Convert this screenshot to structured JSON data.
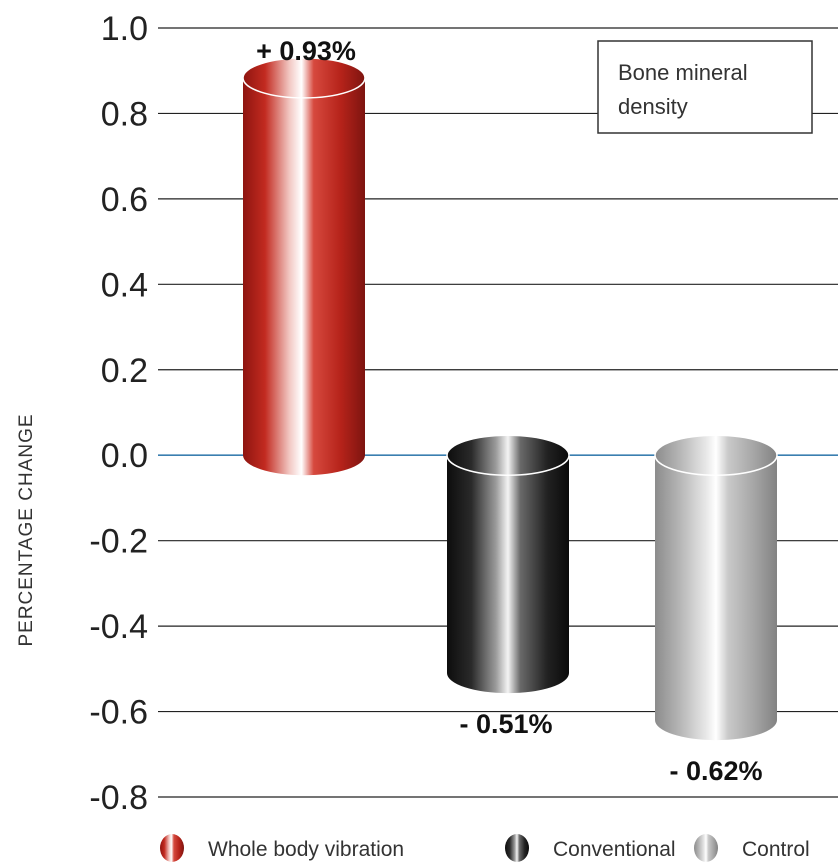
{
  "chart_data": {
    "type": "bar",
    "categories": [
      "Whole body vibration",
      "Conventional",
      "Control"
    ],
    "values": [
      0.93,
      -0.51,
      -0.62
    ],
    "data_labels": [
      "+ 0.93%",
      "- 0.51%",
      "- 0.62%"
    ],
    "ylabel": "PERCENTAGE CHANGE",
    "ylim": [
      -0.8,
      1.0
    ],
    "yticks": [
      "1.0",
      "0.8",
      "0.6",
      "0.4",
      "0.2",
      "0.0",
      "-0.2",
      "-0.4",
      "-0.6",
      "-0.8"
    ],
    "annotation": [
      "Bone mineral",
      "density"
    ],
    "legend": [
      "Whole body vibration",
      "Conventional",
      "Control"
    ],
    "legend_position": "bottom",
    "grid": true,
    "colors": {
      "whole_body_vibration": "#c0281f",
      "conventional": "#1e1e1e",
      "control": "#a6a6a6",
      "zero_line": "#3b7fb0",
      "grid": "#222222"
    }
  }
}
